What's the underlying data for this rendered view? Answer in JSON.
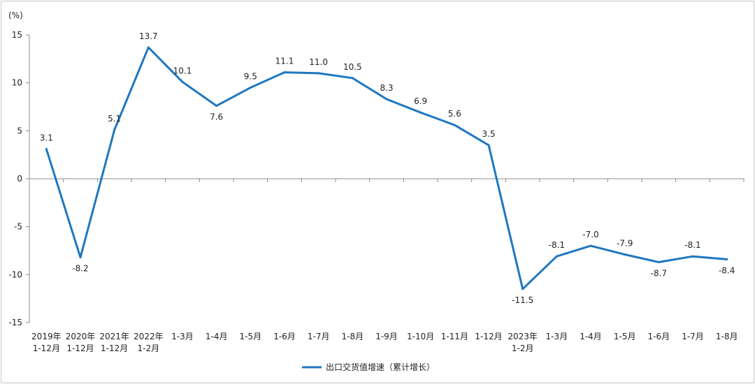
{
  "chart_data": {
    "type": "line",
    "ylabel": "(%)",
    "ylim": [
      -15,
      15
    ],
    "yticks": [
      15,
      10,
      5,
      0,
      -5,
      -10,
      -15
    ],
    "categories": [
      [
        "2019年",
        "1-12月"
      ],
      [
        "2020年",
        "1-12月"
      ],
      [
        "2021年",
        "1-12月"
      ],
      [
        "2022年",
        "1-2月"
      ],
      [
        "1-3月"
      ],
      [
        "1-4月"
      ],
      [
        "1-5月"
      ],
      [
        "1-6月"
      ],
      [
        "1-7月"
      ],
      [
        "1-8月"
      ],
      [
        "1-9月"
      ],
      [
        "1-10月"
      ],
      [
        "1-11月"
      ],
      [
        "1-12月"
      ],
      [
        "2023年",
        "1-2月"
      ],
      [
        "1-3月"
      ],
      [
        "1-4月"
      ],
      [
        "1-5月"
      ],
      [
        "1-6月"
      ],
      [
        "1-7月"
      ],
      [
        "1-8月"
      ]
    ],
    "series": [
      {
        "name": "出口交货值增速（累计增长）",
        "color": "#1f77c0",
        "values": [
          3.1,
          -8.2,
          5.1,
          13.7,
          10.1,
          7.6,
          9.5,
          11.1,
          11.0,
          10.5,
          8.3,
          6.9,
          5.6,
          3.5,
          -11.5,
          -8.1,
          -7.0,
          -7.9,
          -8.7,
          -8.1,
          -8.4
        ],
        "labels": [
          "3.1",
          "-8.2",
          "5.1",
          "13.7",
          "10.1",
          "7.6",
          "9.5",
          "11.1",
          "11.0",
          "10.5",
          "8.3",
          "6.9",
          "5.6",
          "3.5",
          "-11.5",
          "-8.1",
          "-7.0",
          "-7.9",
          "-8.7",
          "-8.1",
          "-8.4"
        ]
      }
    ],
    "grid": false,
    "legend": "bottom-center"
  }
}
